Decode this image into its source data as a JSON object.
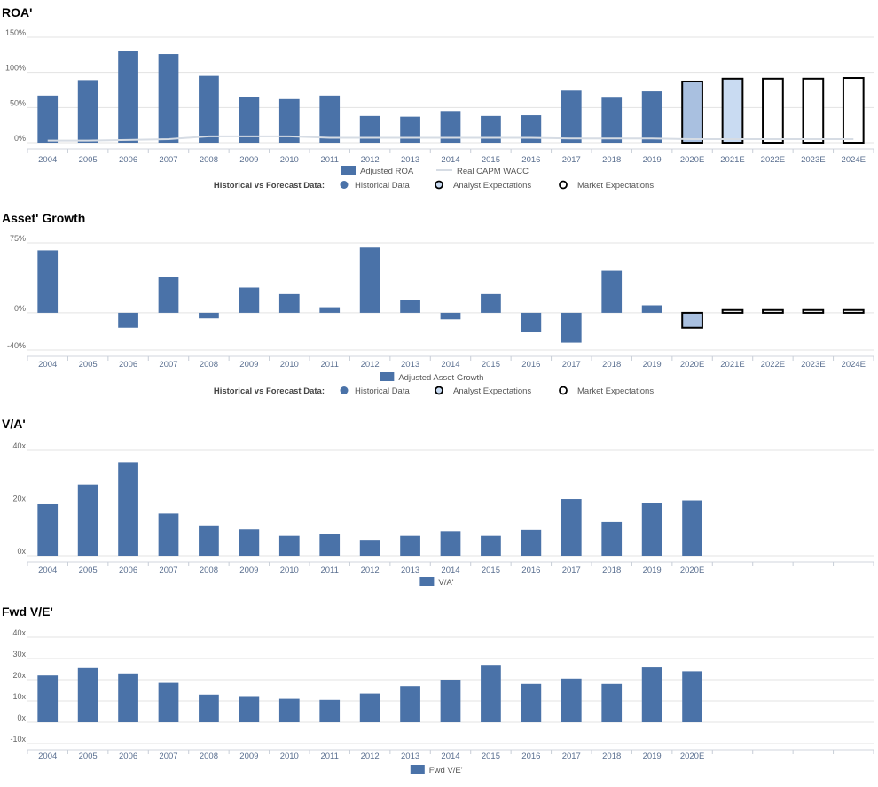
{
  "chart_data": [
    {
      "type": "bar",
      "title": "ROA'",
      "categories": [
        "2004",
        "2005",
        "2006",
        "2007",
        "2008",
        "2009",
        "2010",
        "2011",
        "2012",
        "2013",
        "2014",
        "2015",
        "2016",
        "2017",
        "2018",
        "2019",
        "2020E",
        "2021E",
        "2022E",
        "2023E",
        "2024E"
      ],
      "series": [
        {
          "name": "Adjusted ROA",
          "values": [
            67,
            89,
            131,
            126,
            95,
            65,
            62,
            67,
            38,
            37,
            45,
            38,
            39,
            74,
            64,
            73,
            87,
            91,
            91,
            91,
            92
          ]
        },
        {
          "name": "Real CAPM WACC",
          "type": "line",
          "values": [
            3,
            3,
            4,
            5,
            9,
            9,
            9,
            7,
            7,
            7,
            7,
            7,
            7,
            6,
            6,
            6,
            5,
            5,
            5,
            5,
            5
          ]
        }
      ],
      "point_status": [
        "historical",
        "historical",
        "historical",
        "historical",
        "historical",
        "historical",
        "historical",
        "historical",
        "historical",
        "historical",
        "historical",
        "historical",
        "historical",
        "historical",
        "historical",
        "historical",
        "analyst",
        "analyst",
        "market",
        "market",
        "market"
      ],
      "ylim": [
        0,
        150
      ],
      "yticks": [
        "0%",
        "50%",
        "100%",
        "150%"
      ],
      "grid": true,
      "legend": [
        "Adjusted ROA",
        "Real CAPM WACC"
      ],
      "legend2_title": "Historical vs Forecast Data:",
      "legend2": [
        "Historical Data",
        "Analyst Expectations",
        "Market Expectations"
      ]
    },
    {
      "type": "bar",
      "title": "Asset' Growth",
      "categories": [
        "2004",
        "2005",
        "2006",
        "2007",
        "2008",
        "2009",
        "2010",
        "2011",
        "2012",
        "2013",
        "2014",
        "2015",
        "2016",
        "2017",
        "2018",
        "2019",
        "2020E",
        "2021E",
        "2022E",
        "2023E",
        "2024E"
      ],
      "series": [
        {
          "name": "Adjusted Asset Growth",
          "values": [
            67,
            0,
            -16,
            38,
            -6,
            27,
            20,
            6,
            70,
            14,
            -7,
            20,
            -21,
            -32,
            45,
            8,
            -16,
            3,
            3,
            3,
            3
          ]
        }
      ],
      "point_status": [
        "historical",
        "historical",
        "historical",
        "historical",
        "historical",
        "historical",
        "historical",
        "historical",
        "historical",
        "historical",
        "historical",
        "historical",
        "historical",
        "historical",
        "historical",
        "historical",
        "analyst",
        "market",
        "market",
        "market",
        "market"
      ],
      "ylim": [
        -40,
        75
      ],
      "yticks": [
        "-40%",
        "0%",
        "75%"
      ],
      "grid": true,
      "legend": [
        "Adjusted Asset Growth"
      ],
      "legend2_title": "Historical vs Forecast Data:",
      "legend2": [
        "Historical Data",
        "Analyst Expectations",
        "Market Expectations"
      ]
    },
    {
      "type": "bar",
      "title": "V/A'",
      "categories": [
        "2004",
        "2005",
        "2006",
        "2007",
        "2008",
        "2009",
        "2010",
        "2011",
        "2012",
        "2013",
        "2014",
        "2015",
        "2016",
        "2017",
        "2018",
        "2019",
        "2020E",
        "",
        "",
        "",
        ""
      ],
      "series": [
        {
          "name": "V/A'",
          "values": [
            19.5,
            27,
            35.5,
            16,
            11.5,
            10,
            7.5,
            8.3,
            6,
            7.5,
            9.3,
            7.5,
            9.8,
            21.5,
            12.8,
            20,
            21,
            null,
            null,
            null,
            null
          ]
        }
      ],
      "ylim": [
        0,
        40
      ],
      "yticks": [
        "0x",
        "20x",
        "40x"
      ],
      "grid": true,
      "legend": [
        "V/A'"
      ]
    },
    {
      "type": "bar",
      "title": "Fwd V/E'",
      "categories": [
        "2004",
        "2005",
        "2006",
        "2007",
        "2008",
        "2009",
        "2010",
        "2011",
        "2012",
        "2013",
        "2014",
        "2015",
        "2016",
        "2017",
        "2018",
        "2019",
        "2020E",
        "",
        "",
        "",
        ""
      ],
      "series": [
        {
          "name": "Fwd V/E'",
          "values": [
            22,
            25.5,
            23,
            18.5,
            13,
            12.3,
            11,
            10.5,
            13.5,
            17,
            20,
            27,
            18,
            20.5,
            18,
            25.8,
            24,
            null,
            null,
            null,
            null
          ]
        }
      ],
      "ylim": [
        -10,
        40
      ],
      "yticks": [
        "-10x",
        "0x",
        "10x",
        "20x",
        "30x",
        "40x"
      ],
      "grid": true,
      "legend": [
        "Fwd V/E'"
      ]
    }
  ],
  "colors": {
    "historical": "#4a72a8",
    "analyst_fill": "#a9c0e0",
    "analyst_fill_light": "#c9dbf2",
    "market_fill": "#ffffff",
    "wacc_line": "#d6dce4",
    "grid": "#e3e3e3",
    "tick_text": "#666666",
    "x_text": "#5a6f90"
  }
}
